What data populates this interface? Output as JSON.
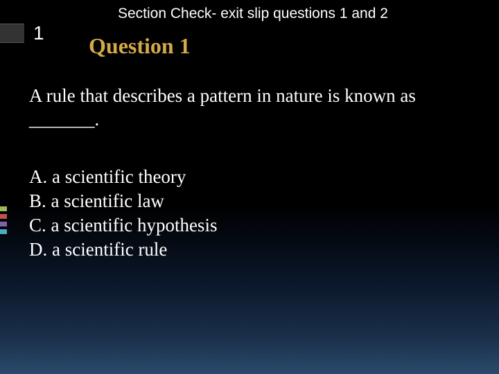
{
  "header": "Section Check- exit slip questions 1 and 2",
  "section_number": "1",
  "question_title": "Question 1",
  "question_body": "A rule that describes a pattern in nature is known as _______.",
  "options": {
    "a": "A. a scientific theory",
    "b": "B. a scientific law",
    "c": "C. a scientific hypothesis",
    "d": "D. a scientific rule"
  },
  "colors": {
    "title_color": "#d4a94a",
    "text_color": "#ffffff",
    "bars": [
      "#9bbb59",
      "#c0504d",
      "#8064a2",
      "#4bacc6"
    ]
  }
}
